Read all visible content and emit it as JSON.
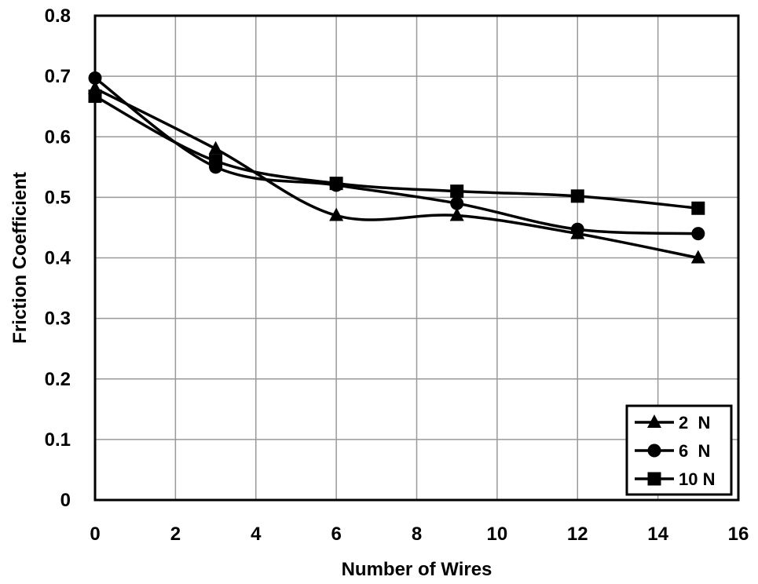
{
  "chart_data": {
    "type": "line",
    "title": "",
    "xlabel": "Number of Wires",
    "ylabel": "Friction Coefficient",
    "xlim": [
      0,
      16
    ],
    "ylim": [
      0,
      0.8
    ],
    "x_ticks": [
      0,
      2,
      4,
      6,
      8,
      10,
      12,
      14,
      16
    ],
    "y_ticks": [
      0,
      0.1,
      0.2,
      0.3,
      0.4,
      0.5,
      0.6,
      0.7,
      0.8
    ],
    "x_tick_labels": [
      "0",
      "2",
      "4",
      "6",
      "8",
      "10",
      "12",
      "14",
      "16"
    ],
    "y_tick_labels": [
      "0",
      "0.1",
      "0.2",
      "0.3",
      "0.4",
      "0.5",
      "0.6",
      "0.7",
      "0.8"
    ],
    "grid": true,
    "smooth": true,
    "legend_position": "bottom-right",
    "x": [
      0,
      3,
      6,
      9,
      12,
      15
    ],
    "series": [
      {
        "name": "2  N",
        "marker": "triangle",
        "values": [
          0.68,
          0.58,
          0.47,
          0.47,
          0.44,
          0.4
        ]
      },
      {
        "name": "6  N",
        "marker": "circle",
        "values": [
          0.697,
          0.55,
          0.52,
          0.49,
          0.447,
          0.44
        ]
      },
      {
        "name": "10 N",
        "marker": "square",
        "values": [
          0.667,
          0.56,
          0.523,
          0.51,
          0.502,
          0.482
        ]
      }
    ],
    "colors": {
      "line": "#000000",
      "grid": "#999999",
      "background": "#ffffff"
    }
  }
}
